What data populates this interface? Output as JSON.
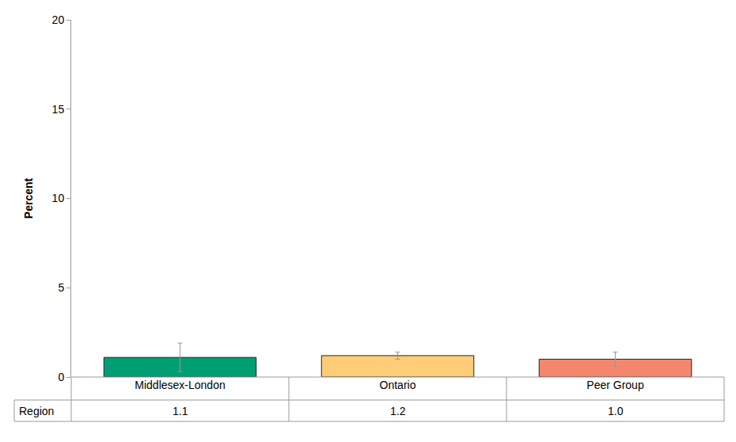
{
  "chart_data": {
    "type": "bar",
    "y_label": "Percent",
    "categories": [
      "Middlesex-London",
      "Ontario",
      "Peer Group"
    ],
    "values": [
      1.1,
      1.2,
      1.0
    ],
    "value_labels": [
      "1.1",
      "1.2",
      "1.0"
    ],
    "error_lower": [
      0.3,
      1.0,
      0.6
    ],
    "error_upper": [
      1.9,
      1.4,
      1.4
    ],
    "colors": [
      "#009e73",
      "#ffcc77",
      "#f4876b"
    ],
    "row_label": "Region",
    "ylim": [
      0,
      20
    ],
    "yticks": [
      0,
      5,
      10,
      15,
      20
    ],
    "grid": false
  }
}
